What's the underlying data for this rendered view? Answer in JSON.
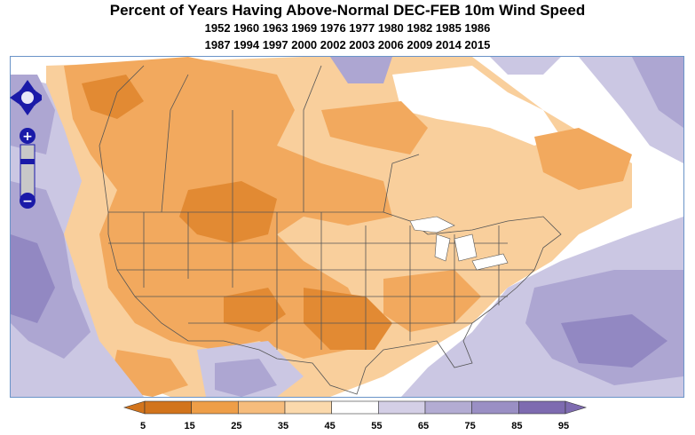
{
  "title": "Percent of Years Having Above-Normal DEC-FEB 10m Wind Speed",
  "years_line1": "1952 1960 1963 1969 1976 1977 1980 1982 1985 1986",
  "years_line2": "1987 1994 1997 2000 2002 2003 2006 2009 2014 2015",
  "controls": {
    "pan_icon": "pan-arrows-icon",
    "zoom_in_label": "+",
    "zoom_out_label": "−"
  },
  "legend": {
    "ticks": [
      "5",
      "15",
      "25",
      "35",
      "45",
      "55",
      "65",
      "75",
      "85",
      "95"
    ],
    "colors": [
      "#d2741c",
      "#ee9e48",
      "#f6bc7c",
      "#fbd9ac",
      "#ffffff",
      "#d4cfe6",
      "#b3acd3",
      "#9a8fc4",
      "#7e6bb0"
    ]
  },
  "palette": {
    "orange_dark": "#e28a33",
    "orange_mid": "#f2a95e",
    "orange_light": "#f9cf9c",
    "purple_light": "#cbc7e3",
    "purple_mid": "#ada6d2",
    "purple_dark": "#9288c2"
  }
}
